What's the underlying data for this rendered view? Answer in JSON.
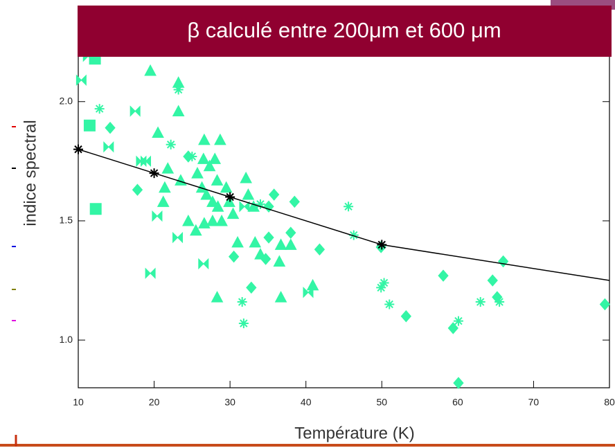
{
  "chart_data": {
    "type": "scatter",
    "title": "β calculé entre 200μm et 600 μm",
    "xlabel": "Température (K)",
    "ylabel": "indice spectral",
    "xlim": [
      10,
      80
    ],
    "ylim": [
      0.8,
      2.4
    ],
    "xticks": [
      10,
      20,
      30,
      40,
      50,
      60,
      70,
      80
    ],
    "yticks": [
      {
        "value": 1,
        "label": "1.0"
      },
      1.5,
      {
        "value": 2,
        "label": "2.0"
      }
    ],
    "series": [
      {
        "marker": "triangle",
        "color": "#33f5a5",
        "mode": "markers",
        "x": [
          19.5,
          23.2,
          23.2,
          20.5,
          26.6,
          28.7,
          21.8,
          21.4,
          21.2,
          24.5,
          25.5,
          26.5,
          27.3,
          28,
          28.3,
          26.3,
          26.9,
          27.7,
          28.4,
          28.9,
          29.9,
          29.5,
          30.4,
          32.1,
          32.4,
          33.1,
          27.7,
          26.6,
          28.3,
          33.3,
          34,
          36.7,
          36.5,
          38,
          36.7,
          40.9,
          31,
          23.5,
          25.7
        ],
        "values": [
          2.13,
          2.08,
          1.96,
          1.87,
          1.84,
          1.84,
          1.72,
          1.64,
          1.58,
          1.5,
          1.46,
          1.76,
          1.73,
          1.76,
          1.67,
          1.64,
          1.61,
          1.58,
          1.56,
          1.5,
          1.58,
          1.64,
          1.53,
          1.68,
          1.61,
          1.56,
          1.5,
          1.49,
          1.18,
          1.41,
          1.36,
          1.4,
          1.33,
          1.4,
          1.18,
          1.23,
          1.41,
          1.67,
          1.7
        ]
      },
      {
        "marker": "diamond",
        "color": "#33f5a5",
        "mode": "markers",
        "x": [
          14.2,
          17.8,
          24.5,
          30.5,
          32.8,
          34.7,
          35.1,
          35.8,
          38.5,
          38,
          41.8,
          49.9,
          53.2,
          58.1,
          59.4,
          60.1,
          64.6,
          66,
          65.2,
          79.4,
          35.1
        ],
        "values": [
          1.89,
          1.63,
          1.77,
          1.35,
          1.22,
          1.34,
          1.43,
          1.61,
          1.58,
          1.45,
          1.38,
          1.39,
          1.1,
          1.27,
          1.05,
          0.82,
          1.25,
          1.33,
          1.18,
          1.15,
          1.56
        ]
      },
      {
        "marker": "square",
        "color": "#33f5a5",
        "mode": "markers",
        "x": [
          11.5,
          12.2,
          12.3
        ],
        "values": [
          1.9,
          2.18,
          1.55
        ]
      },
      {
        "marker": "asterisk",
        "color": "#33f5a5",
        "mode": "markers",
        "x": [
          12.8,
          22.2,
          23.2,
          31.6,
          31.8,
          45.6,
          46.3,
          49.9,
          50.3,
          51,
          60.1,
          63,
          25,
          34,
          65.5
        ],
        "values": [
          1.97,
          1.82,
          2.05,
          1.16,
          1.07,
          1.56,
          1.44,
          1.22,
          1.24,
          1.15,
          1.08,
          1.16,
          1.77,
          1.57,
          1.16
        ]
      },
      {
        "marker": "bowtie",
        "color": "#33f5a5",
        "mode": "markers",
        "x": [
          10.4,
          11.3,
          14,
          17.5,
          18.3,
          18.9,
          20.4,
          23.1,
          19.5,
          26.5,
          40.3,
          31.9
        ],
        "values": [
          2.09,
          2.19,
          1.81,
          1.96,
          1.75,
          1.75,
          1.52,
          1.43,
          1.28,
          1.32,
          1.2,
          1.56
        ]
      },
      {
        "marker": "asterisk",
        "color": "#000000",
        "mode": "lines",
        "x": [
          10,
          20,
          30,
          50,
          80
        ],
        "values": [
          1.8,
          1.7,
          1.6,
          1.4,
          1.25
        ]
      }
    ]
  }
}
